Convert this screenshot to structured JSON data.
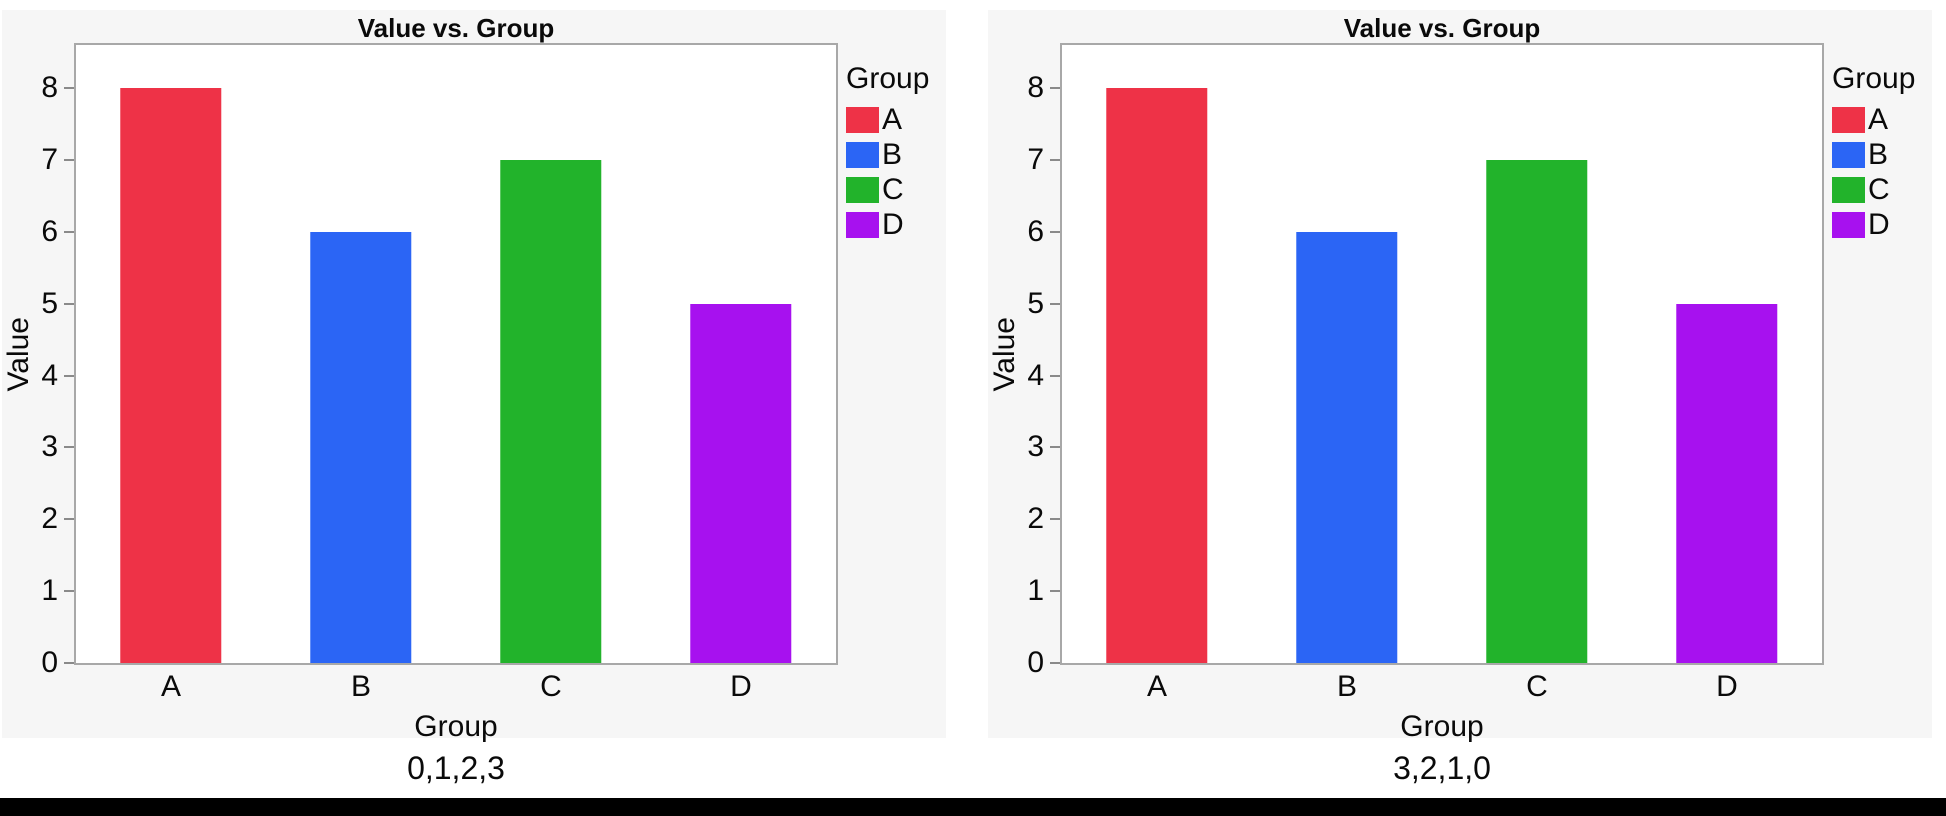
{
  "page": {
    "background": "#ffffff",
    "panel_background": "#f6f6f6",
    "plot_border_color": "#a8a8a8",
    "tick_color": "#8a8a8a",
    "bottom_bar_color": "#000000"
  },
  "chart_data": [
    {
      "type": "bar",
      "title": "Value vs. Group",
      "xlabel": "Group",
      "ylabel": "Value",
      "categories": [
        "A",
        "B",
        "C",
        "D"
      ],
      "values": [
        8,
        6,
        7,
        5
      ],
      "bar_colors": [
        "#ee3247",
        "#2b65f5",
        "#22b32b",
        "#a711ef"
      ],
      "ylim": [
        0,
        8.6
      ],
      "yticks": [
        0,
        1,
        2,
        3,
        4,
        5,
        6,
        7,
        8
      ],
      "grid": false,
      "legend_position": "right",
      "legend_title": "Group",
      "legend": [
        {
          "label": "A",
          "color": "#ee3247"
        },
        {
          "label": "B",
          "color": "#2b65f5"
        },
        {
          "label": "C",
          "color": "#22b32b"
        },
        {
          "label": "D",
          "color": "#a711ef"
        }
      ],
      "caption": "0,1,2,3"
    },
    {
      "type": "bar",
      "title": "Value vs. Group",
      "xlabel": "Group",
      "ylabel": "Value",
      "categories": [
        "A",
        "B",
        "C",
        "D"
      ],
      "values": [
        8,
        6,
        7,
        5
      ],
      "bar_colors": [
        "#ee3247",
        "#2b65f5",
        "#22b32b",
        "#a711ef"
      ],
      "ylim": [
        0,
        8.6
      ],
      "yticks": [
        0,
        1,
        2,
        3,
        4,
        5,
        6,
        7,
        8
      ],
      "grid": false,
      "legend_position": "right",
      "legend_title": "Group",
      "legend": [
        {
          "label": "A",
          "color": "#ee3247"
        },
        {
          "label": "B",
          "color": "#2b65f5"
        },
        {
          "label": "C",
          "color": "#22b32b"
        },
        {
          "label": "D",
          "color": "#a711ef"
        }
      ],
      "caption": "3,2,1,0"
    }
  ]
}
